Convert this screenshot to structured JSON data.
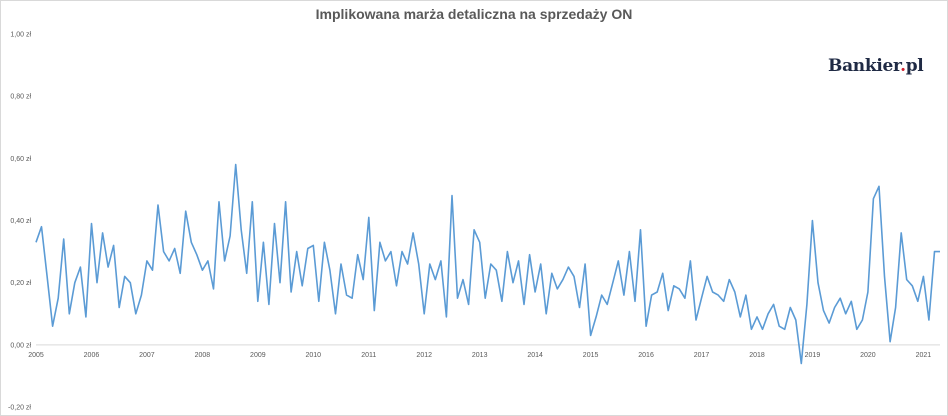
{
  "chart_data": {
    "type": "line",
    "title": "Implikowana marża detaliczna na sprzedaży ON",
    "xlabel": "",
    "ylabel": "",
    "ylim": [
      -0.2,
      1.0
    ],
    "y_ticks": [
      "-0,20 zł",
      "0,00 zł",
      "0,20 zł",
      "0,40 zł",
      "0,60 zł",
      "0,80 zł",
      "1,00 zł"
    ],
    "y_tick_values": [
      -0.2,
      0.0,
      0.2,
      0.4,
      0.6,
      0.8,
      1.0
    ],
    "x_ticks": [
      "2005",
      "2006",
      "2007",
      "2008",
      "2009",
      "2010",
      "2011",
      "2012",
      "2013",
      "2014",
      "2015",
      "2016",
      "2017",
      "2018",
      "2019",
      "2020",
      "2021"
    ],
    "x_tick_values": [
      2005,
      2006,
      2007,
      2008,
      2009,
      2010,
      2011,
      2012,
      2013,
      2014,
      2015,
      2016,
      2017,
      2018,
      2019,
      2020,
      2021
    ],
    "xlim": [
      2005,
      2021.3
    ],
    "grid": false,
    "series": [
      {
        "name": "",
        "color": "#5b9bd5",
        "points": [
          [
            2005.0,
            0.33
          ],
          [
            2005.1,
            0.38
          ],
          [
            2005.2,
            0.22
          ],
          [
            2005.3,
            0.06
          ],
          [
            2005.4,
            0.15
          ],
          [
            2005.5,
            0.34
          ],
          [
            2005.6,
            0.1
          ],
          [
            2005.7,
            0.2
          ],
          [
            2005.8,
            0.25
          ],
          [
            2005.9,
            0.09
          ],
          [
            2006.0,
            0.39
          ],
          [
            2006.1,
            0.2
          ],
          [
            2006.2,
            0.36
          ],
          [
            2006.3,
            0.25
          ],
          [
            2006.4,
            0.32
          ],
          [
            2006.5,
            0.12
          ],
          [
            2006.6,
            0.22
          ],
          [
            2006.7,
            0.2
          ],
          [
            2006.8,
            0.1
          ],
          [
            2006.9,
            0.16
          ],
          [
            2007.0,
            0.27
          ],
          [
            2007.1,
            0.24
          ],
          [
            2007.2,
            0.45
          ],
          [
            2007.3,
            0.3
          ],
          [
            2007.4,
            0.27
          ],
          [
            2007.5,
            0.31
          ],
          [
            2007.6,
            0.23
          ],
          [
            2007.7,
            0.43
          ],
          [
            2007.8,
            0.33
          ],
          [
            2007.9,
            0.29
          ],
          [
            2008.0,
            0.24
          ],
          [
            2008.1,
            0.27
          ],
          [
            2008.2,
            0.18
          ],
          [
            2008.3,
            0.46
          ],
          [
            2008.4,
            0.27
          ],
          [
            2008.5,
            0.35
          ],
          [
            2008.6,
            0.58
          ],
          [
            2008.7,
            0.37
          ],
          [
            2008.8,
            0.23
          ],
          [
            2008.9,
            0.46
          ],
          [
            2009.0,
            0.14
          ],
          [
            2009.1,
            0.33
          ],
          [
            2009.2,
            0.13
          ],
          [
            2009.3,
            0.39
          ],
          [
            2009.4,
            0.2
          ],
          [
            2009.5,
            0.46
          ],
          [
            2009.6,
            0.17
          ],
          [
            2009.7,
            0.3
          ],
          [
            2009.8,
            0.19
          ],
          [
            2009.9,
            0.31
          ],
          [
            2010.0,
            0.32
          ],
          [
            2010.1,
            0.14
          ],
          [
            2010.2,
            0.33
          ],
          [
            2010.3,
            0.24
          ],
          [
            2010.4,
            0.1
          ],
          [
            2010.5,
            0.26
          ],
          [
            2010.6,
            0.16
          ],
          [
            2010.7,
            0.15
          ],
          [
            2010.8,
            0.29
          ],
          [
            2010.9,
            0.21
          ],
          [
            2011.0,
            0.41
          ],
          [
            2011.1,
            0.11
          ],
          [
            2011.2,
            0.33
          ],
          [
            2011.3,
            0.27
          ],
          [
            2011.4,
            0.3
          ],
          [
            2011.5,
            0.19
          ],
          [
            2011.6,
            0.3
          ],
          [
            2011.7,
            0.26
          ],
          [
            2011.8,
            0.36
          ],
          [
            2011.9,
            0.26
          ],
          [
            2012.0,
            0.1
          ],
          [
            2012.1,
            0.26
          ],
          [
            2012.2,
            0.21
          ],
          [
            2012.3,
            0.27
          ],
          [
            2012.4,
            0.09
          ],
          [
            2012.5,
            0.48
          ],
          [
            2012.6,
            0.15
          ],
          [
            2012.7,
            0.21
          ],
          [
            2012.8,
            0.13
          ],
          [
            2012.9,
            0.37
          ],
          [
            2013.0,
            0.33
          ],
          [
            2013.1,
            0.15
          ],
          [
            2013.2,
            0.26
          ],
          [
            2013.3,
            0.24
          ],
          [
            2013.4,
            0.14
          ],
          [
            2013.5,
            0.3
          ],
          [
            2013.6,
            0.2
          ],
          [
            2013.7,
            0.27
          ],
          [
            2013.8,
            0.13
          ],
          [
            2013.9,
            0.29
          ],
          [
            2014.0,
            0.17
          ],
          [
            2014.1,
            0.26
          ],
          [
            2014.2,
            0.1
          ],
          [
            2014.3,
            0.23
          ],
          [
            2014.4,
            0.18
          ],
          [
            2014.5,
            0.21
          ],
          [
            2014.6,
            0.25
          ],
          [
            2014.7,
            0.22
          ],
          [
            2014.8,
            0.12
          ],
          [
            2014.9,
            0.26
          ],
          [
            2015.0,
            0.03
          ],
          [
            2015.1,
            0.09
          ],
          [
            2015.2,
            0.16
          ],
          [
            2015.3,
            0.13
          ],
          [
            2015.4,
            0.2
          ],
          [
            2015.5,
            0.27
          ],
          [
            2015.6,
            0.16
          ],
          [
            2015.7,
            0.3
          ],
          [
            2015.8,
            0.14
          ],
          [
            2015.9,
            0.37
          ],
          [
            2016.0,
            0.06
          ],
          [
            2016.1,
            0.16
          ],
          [
            2016.2,
            0.17
          ],
          [
            2016.3,
            0.23
          ],
          [
            2016.4,
            0.11
          ],
          [
            2016.5,
            0.19
          ],
          [
            2016.6,
            0.18
          ],
          [
            2016.7,
            0.15
          ],
          [
            2016.8,
            0.27
          ],
          [
            2016.9,
            0.08
          ],
          [
            2017.0,
            0.15
          ],
          [
            2017.1,
            0.22
          ],
          [
            2017.2,
            0.17
          ],
          [
            2017.3,
            0.16
          ],
          [
            2017.4,
            0.14
          ],
          [
            2017.5,
            0.21
          ],
          [
            2017.6,
            0.17
          ],
          [
            2017.7,
            0.09
          ],
          [
            2017.8,
            0.16
          ],
          [
            2017.9,
            0.05
          ],
          [
            2018.0,
            0.09
          ],
          [
            2018.1,
            0.05
          ],
          [
            2018.2,
            0.1
          ],
          [
            2018.3,
            0.13
          ],
          [
            2018.4,
            0.06
          ],
          [
            2018.5,
            0.05
          ],
          [
            2018.6,
            0.12
          ],
          [
            2018.7,
            0.08
          ],
          [
            2018.8,
            -0.06
          ],
          [
            2018.9,
            0.13
          ],
          [
            2019.0,
            0.4
          ],
          [
            2019.1,
            0.2
          ],
          [
            2019.2,
            0.11
          ],
          [
            2019.3,
            0.07
          ],
          [
            2019.4,
            0.12
          ],
          [
            2019.5,
            0.15
          ],
          [
            2019.6,
            0.1
          ],
          [
            2019.7,
            0.14
          ],
          [
            2019.8,
            0.05
          ],
          [
            2019.9,
            0.08
          ],
          [
            2020.0,
            0.17
          ],
          [
            2020.1,
            0.47
          ],
          [
            2020.2,
            0.51
          ],
          [
            2020.3,
            0.22
          ],
          [
            2020.4,
            0.01
          ],
          [
            2020.5,
            0.12
          ],
          [
            2020.6,
            0.36
          ],
          [
            2020.7,
            0.21
          ],
          [
            2020.8,
            0.19
          ],
          [
            2020.9,
            0.14
          ],
          [
            2021.0,
            0.22
          ],
          [
            2021.1,
            0.08
          ],
          [
            2021.2,
            0.3
          ],
          [
            2021.3,
            0.3
          ]
        ]
      }
    ]
  },
  "logo": {
    "name": "Bankier",
    "dot": ".",
    "suffix": "pl"
  }
}
